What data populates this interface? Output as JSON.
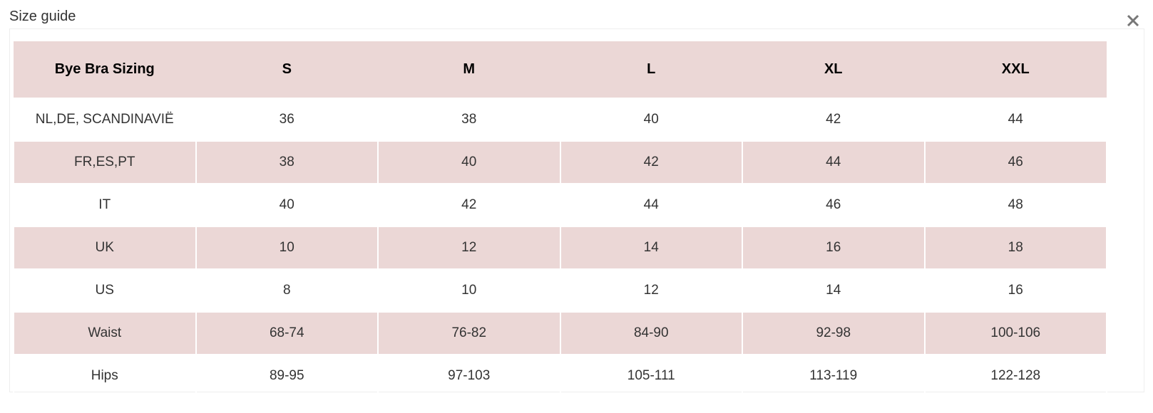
{
  "header": {
    "title": "Size guide"
  },
  "table": {
    "columns": [
      "Bye Bra Sizing",
      "S",
      "M",
      "L",
      "XL",
      "XXL"
    ],
    "rows": [
      [
        "NL,DE, SCANDINAVIË",
        "36",
        "38",
        "40",
        "42",
        "44"
      ],
      [
        "FR,ES,PT",
        "38",
        "40",
        "42",
        "44",
        "46"
      ],
      [
        "IT",
        "40",
        "42",
        "44",
        "46",
        "48"
      ],
      [
        "UK",
        "10",
        "12",
        "14",
        "16",
        "18"
      ],
      [
        "US",
        "8",
        "10",
        "12",
        "14",
        "16"
      ],
      [
        "Waist",
        "68-74",
        "76-82",
        "84-90",
        "92-98",
        "100-106"
      ],
      [
        "Hips",
        "89-95",
        "97-103",
        "105-111",
        "113-119",
        "122-128"
      ]
    ]
  }
}
